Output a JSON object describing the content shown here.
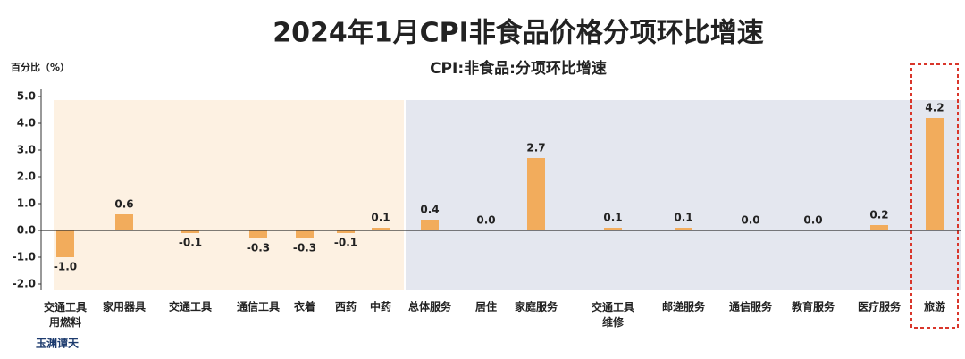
{
  "chart_data": {
    "type": "bar",
    "title": "2024年1月CPI非食品价格分项环比增速",
    "subtitle": "CPI:非食品:分项环比增速",
    "y_label": "百分比（%）",
    "source": "玉渊谭天",
    "categories": [
      "交通工具用燃料",
      "家用器具",
      "交通工具",
      "通信工具",
      "衣着",
      "西药",
      "中药",
      "总体服务",
      "居住",
      "家庭服务",
      "交通工具维修",
      "邮递服务",
      "通信服务",
      "教育服务",
      "医疗服务",
      "旅游"
    ],
    "values": [
      -1.0,
      0.6,
      -0.1,
      -0.3,
      -0.3,
      -0.1,
      0.1,
      0.4,
      0.0,
      2.7,
      0.1,
      0.1,
      0.0,
      0.0,
      0.2,
      4.2
    ],
    "value_labels": [
      "-1.0",
      "0.6",
      "-0.1",
      "-0.3",
      "-0.3",
      "-0.1",
      "0.1",
      "0.4",
      "0.0",
      "2.7",
      "0.1",
      "0.1",
      "0.0",
      "0.0",
      "0.2",
      "4.2"
    ],
    "color": "#f2ac5c",
    "ylim": [
      -2,
      5
    ],
    "yticks": [
      {
        "value": -2,
        "label": "-2.0"
      },
      {
        "value": -1,
        "label": "-1.0"
      },
      {
        "value": 0,
        "label": "0.0"
      },
      {
        "value": 1,
        "label": "1.0"
      },
      {
        "value": 2,
        "label": "2.0"
      },
      {
        "value": 3,
        "label": "3.0"
      },
      {
        "value": 4,
        "label": "4.0"
      },
      {
        "value": 5,
        "label": "5.0"
      }
    ]
  }
}
